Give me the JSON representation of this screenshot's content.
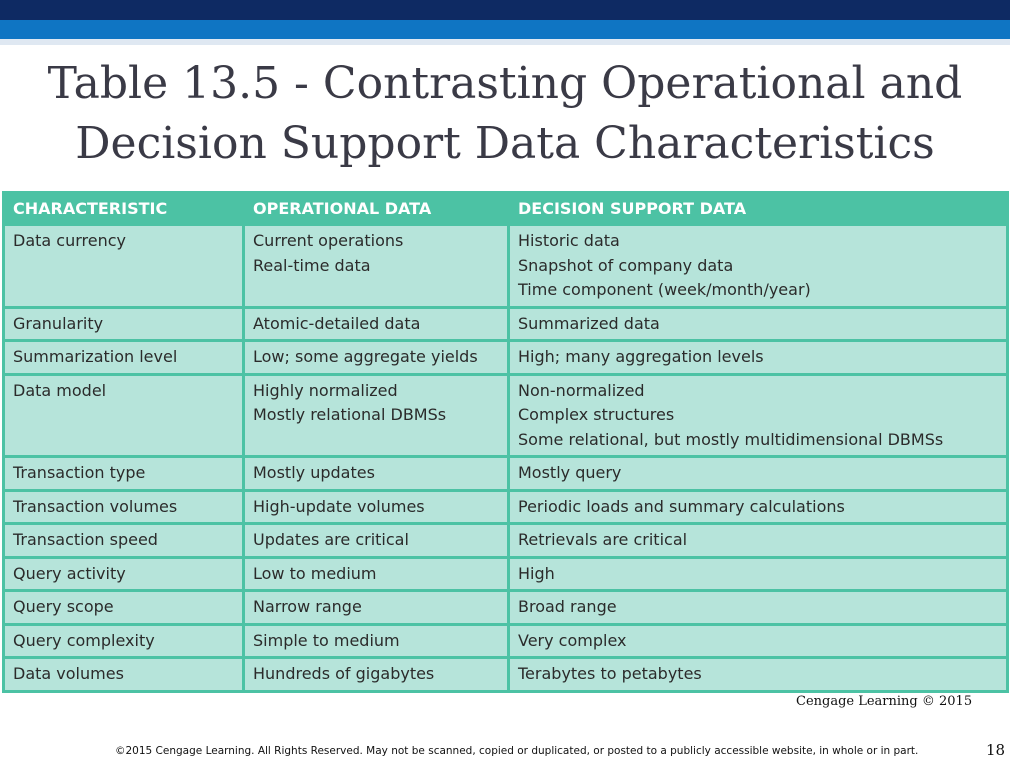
{
  "slide": {
    "title_line1": "Table 13.5 - Contrasting Operational and",
    "title_line2": "Decision Support Data Characteristics",
    "credit": "Cengage Learning © 2015",
    "footer": "©2015 Cengage Learning. All Rights Reserved. May not be scanned, copied or duplicated, or posted to a publicly accessible website, in whole or in part.",
    "page_number": "18",
    "colors": {
      "header_band_dark": "#0e2a63",
      "header_band_mid": "#0f75c3",
      "table_header": "#4cc2a4",
      "table_body": "#b6e4da"
    }
  },
  "table": {
    "headers": [
      "CHARACTERISTIC",
      "OPERATIONAL DATA",
      "DECISION SUPPORT DATA"
    ],
    "rows": [
      [
        [
          "Data currency"
        ],
        [
          "Current operations",
          "Real-time data"
        ],
        [
          "Historic data",
          "Snapshot of company data",
          "Time component (week/month/year)"
        ]
      ],
      [
        [
          "Granularity"
        ],
        [
          "Atomic-detailed data"
        ],
        [
          "Summarized data"
        ]
      ],
      [
        [
          "Summarization level"
        ],
        [
          "Low; some aggregate yields"
        ],
        [
          "High; many aggregation levels"
        ]
      ],
      [
        [
          "Data model"
        ],
        [
          "Highly normalized",
          "Mostly relational DBMSs"
        ],
        [
          "Non-normalized",
          "Complex structures",
          "Some relational, but mostly multidimensional DBMSs"
        ]
      ],
      [
        [
          "Transaction type"
        ],
        [
          "Mostly updates"
        ],
        [
          "Mostly query"
        ]
      ],
      [
        [
          "Transaction volumes"
        ],
        [
          "High-update volumes"
        ],
        [
          "Periodic loads and summary calculations"
        ]
      ],
      [
        [
          "Transaction speed"
        ],
        [
          "Updates are critical"
        ],
        [
          "Retrievals are critical"
        ]
      ],
      [
        [
          "Query activity"
        ],
        [
          "Low to medium"
        ],
        [
          "High"
        ]
      ],
      [
        [
          "Query scope"
        ],
        [
          "Narrow range"
        ],
        [
          "Broad range"
        ]
      ],
      [
        [
          "Query complexity"
        ],
        [
          "Simple to medium"
        ],
        [
          "Very complex"
        ]
      ],
      [
        [
          "Data volumes"
        ],
        [
          "Hundreds of gigabytes"
        ],
        [
          "Terabytes to petabytes"
        ]
      ]
    ]
  }
}
